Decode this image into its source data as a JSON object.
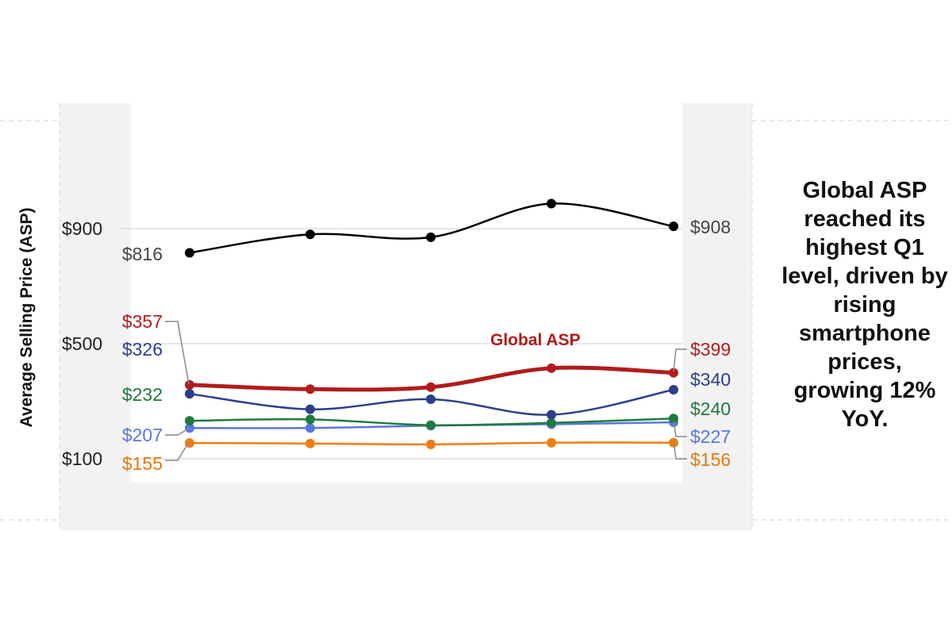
{
  "chart_data": {
    "type": "line",
    "ylabel": "Average Selling Price (ASP)",
    "y_ticks": [
      {
        "value": 900,
        "label": "$900"
      },
      {
        "value": 500,
        "label": "$500"
      },
      {
        "value": 100,
        "label": "$100"
      }
    ],
    "ylim": [
      0,
      1100
    ],
    "x": [
      1,
      2,
      3,
      4,
      5
    ],
    "grid": true,
    "series": [
      {
        "key": "top",
        "color": "#000000",
        "name": "",
        "values": [
          816,
          880,
          870,
          987,
          908
        ],
        "start_label": "$816",
        "end_label": "$908",
        "label_color": "#444444"
      },
      {
        "key": "global",
        "color": "#b01c1c",
        "name": "Global ASP",
        "values": [
          357,
          342,
          349,
          415,
          399
        ],
        "start_label": "$357",
        "end_label": "$399",
        "label_color": "#b01c1c"
      },
      {
        "key": "navy",
        "color": "#2b3f8c",
        "name": "",
        "values": [
          326,
          272,
          307,
          253,
          340
        ],
        "start_label": "$326",
        "end_label": "$340",
        "label_color": "#2b3f8c"
      },
      {
        "key": "green",
        "color": "#1f7a3c",
        "name": "",
        "values": [
          232,
          237,
          217,
          225,
          240
        ],
        "start_label": "$232",
        "end_label": "$240",
        "label_color": "#1f7a3c"
      },
      {
        "key": "blue",
        "color": "#5a78e0",
        "name": "",
        "values": [
          207,
          207,
          215,
          220,
          227
        ],
        "start_label": "$207",
        "end_label": "$227",
        "label_color": "#5a78e0"
      },
      {
        "key": "orange",
        "color": "#f07c12",
        "name": "",
        "values": [
          155,
          153,
          150,
          156,
          156
        ],
        "start_label": "$155",
        "end_label": "$156",
        "label_color": "#e07a10"
      }
    ],
    "annotation": "Global ASP reached its highest Q1 level, driven by rising smartphone prices, growing 12% YoY."
  }
}
